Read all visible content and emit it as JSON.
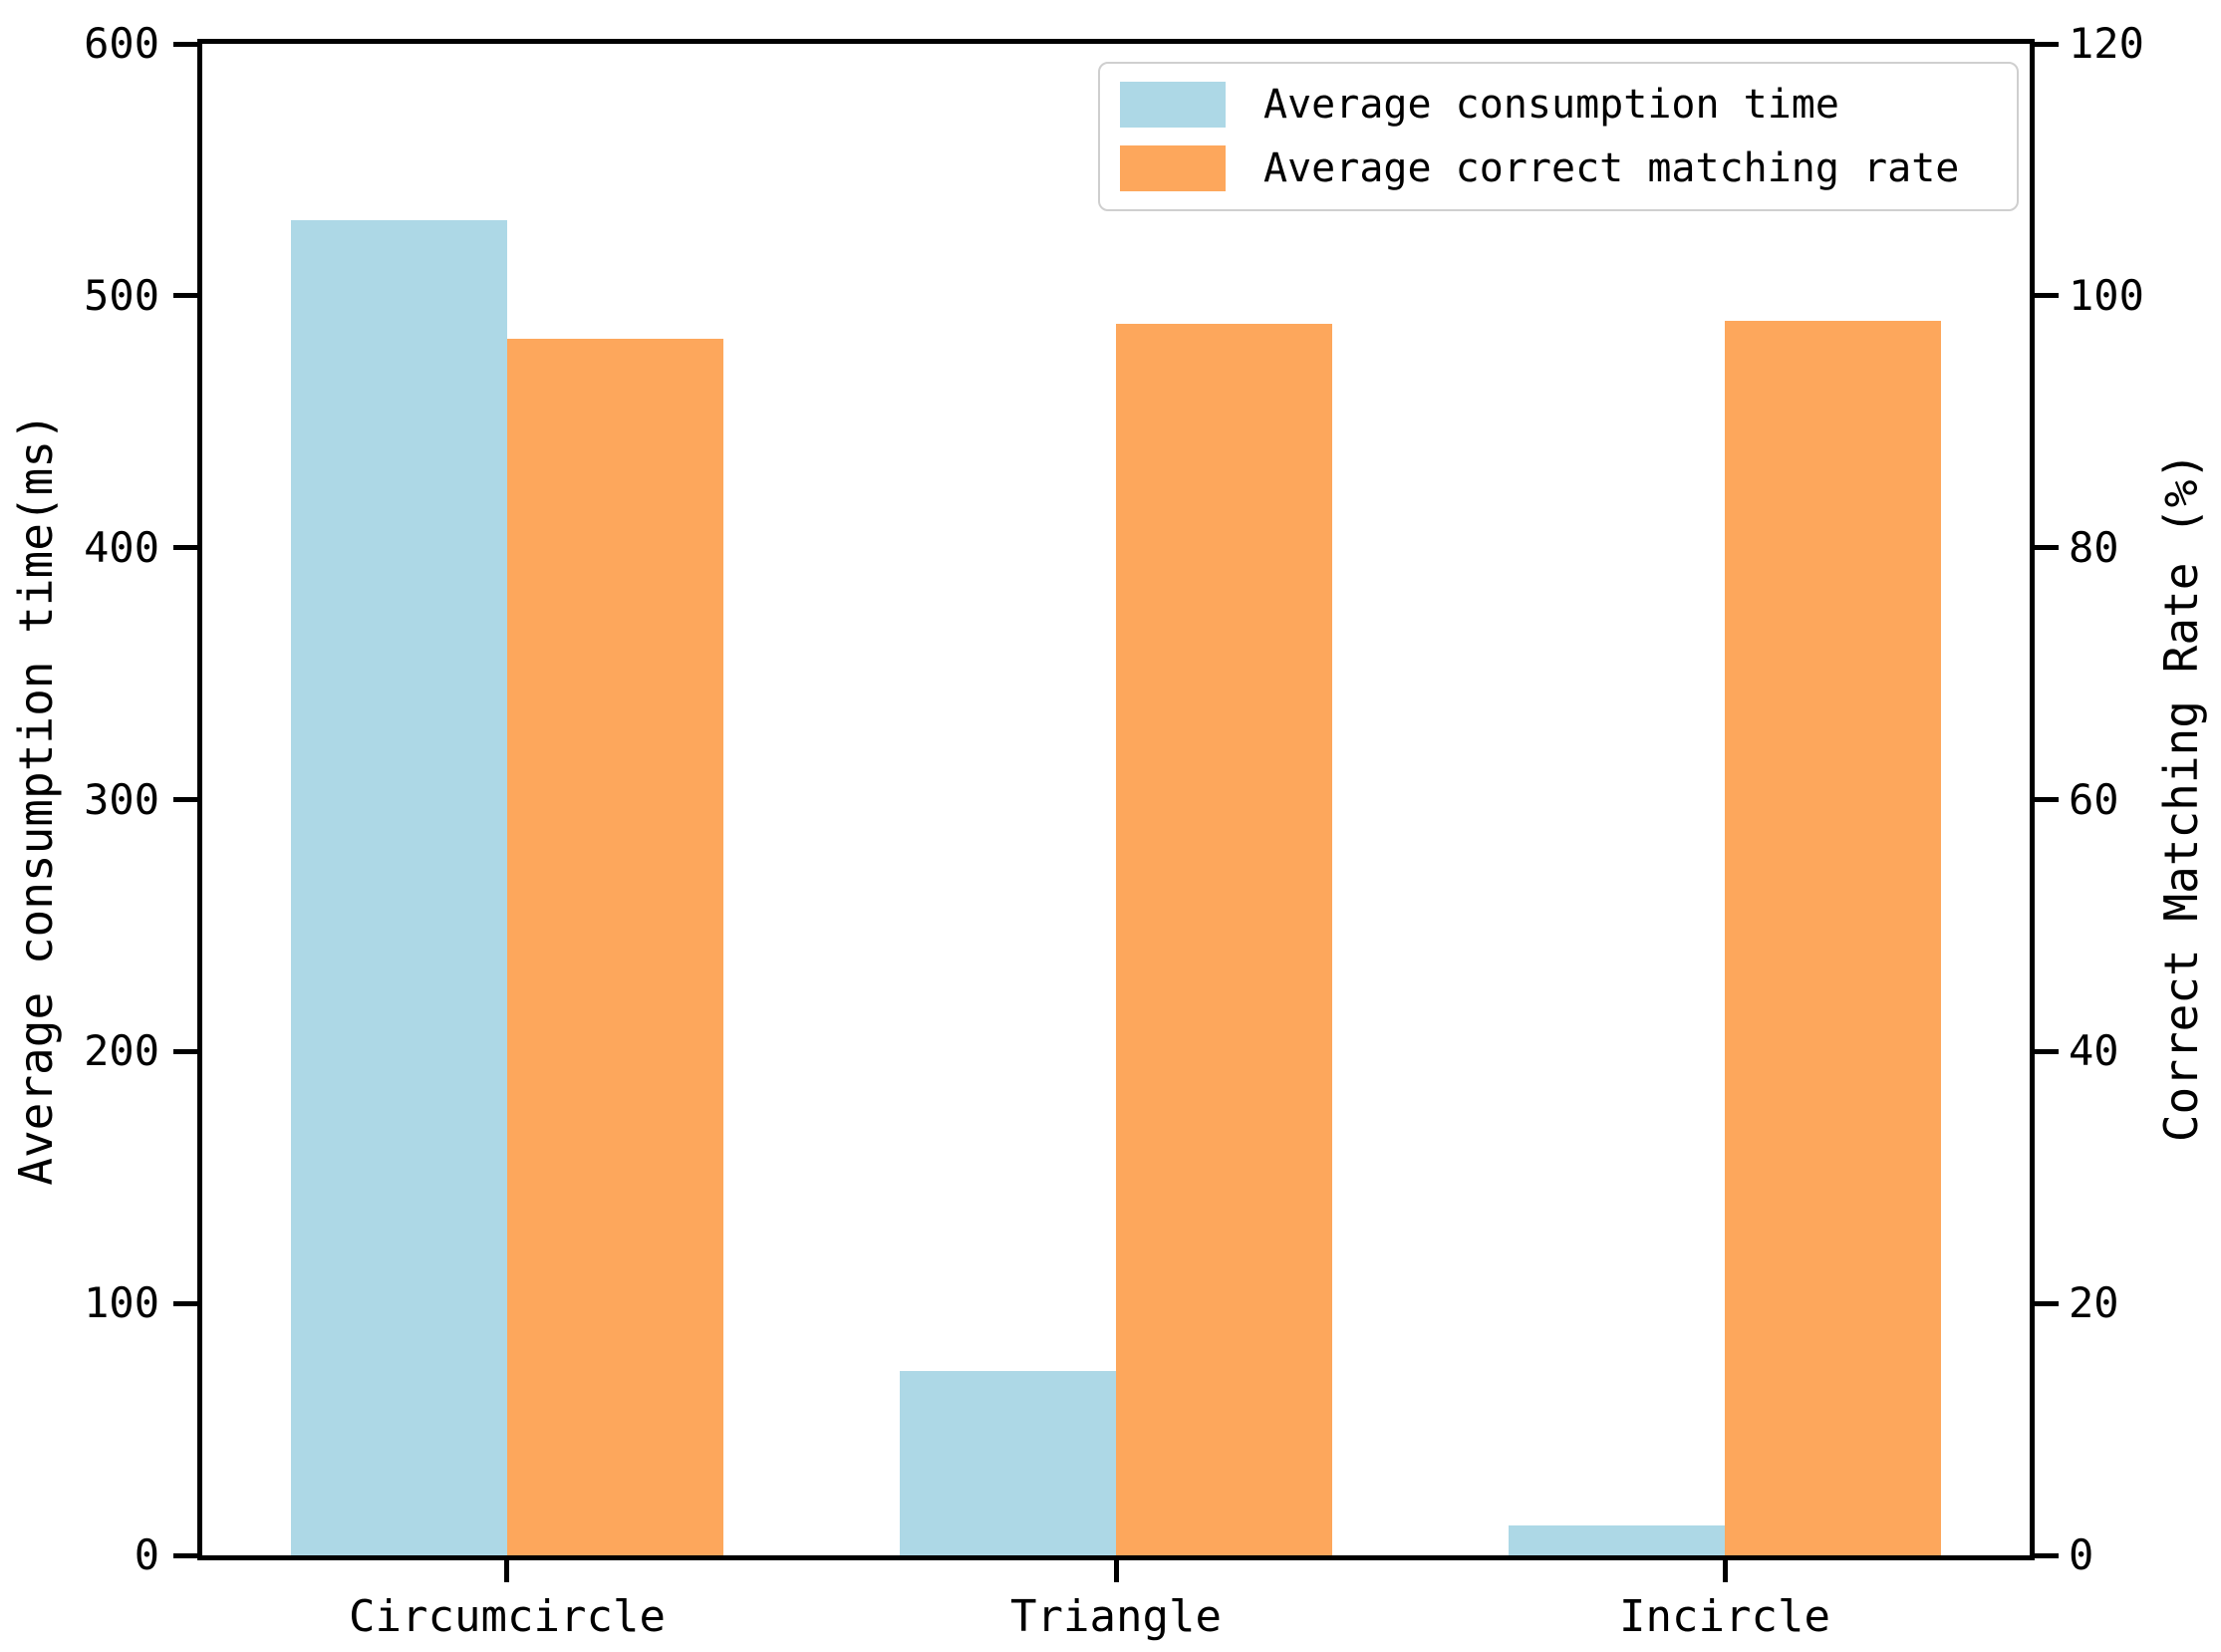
{
  "figure": {
    "background": "#ffffff",
    "text_color": "#000000"
  },
  "chart_data": {
    "type": "bar",
    "categories": [
      "Circumcircle",
      "Triangle",
      "Incircle"
    ],
    "series": [
      {
        "name": "Average consumption time",
        "axis": "left",
        "unit": "ms",
        "color": "#ADD8E6",
        "values": [
          530,
          73,
          12
        ]
      },
      {
        "name": "Average correct matching rate",
        "axis": "right",
        "unit": "%",
        "color": "#FDA75C",
        "values": [
          96.6,
          97.8,
          98.0
        ]
      }
    ],
    "left_axis": {
      "label": "Average consumption time(ms)",
      "range": [
        0,
        600
      ],
      "ticks": [
        0,
        100,
        200,
        300,
        400,
        500,
        600
      ]
    },
    "right_axis": {
      "label": "Correct Matching Rate (%)",
      "range": [
        0,
        120
      ],
      "ticks": [
        0,
        20,
        40,
        60,
        80,
        100,
        120
      ]
    },
    "legend": {
      "position": "upper-right",
      "entries": [
        {
          "label": "Average consumption time",
          "color": "#ADD8E6"
        },
        {
          "label": "Average correct matching rate",
          "color": "#FDA75C"
        }
      ]
    },
    "grid": false,
    "bars_touching": true
  }
}
